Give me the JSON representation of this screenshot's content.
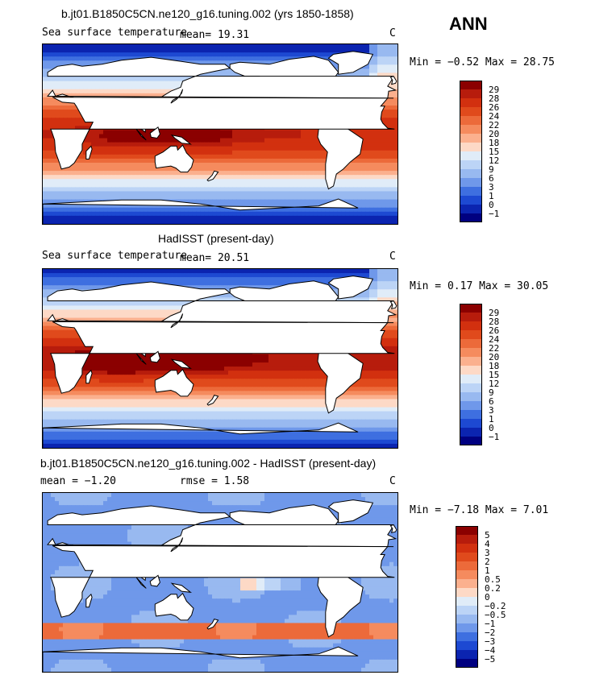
{
  "season": "ANN",
  "panels": [
    {
      "title": "b.jt01.B1850C5CN.ne120_g16.tuning.002 (yrs 1850-1858)",
      "left_label": "Sea surface temperature",
      "mean_text": "mean=  19.31",
      "units": "C",
      "minmax": "Min =  −0.52  Max =  28.75",
      "kind": "abs"
    },
    {
      "title": "HadISST (present-day)",
      "left_label": "Sea surface temperature",
      "mean_text": "mean=  20.51",
      "units": "C",
      "minmax": "Min =   0.17  Max =  30.05",
      "kind": "abs"
    },
    {
      "title": "b.jt01.B1850C5CN.ne120_g16.tuning.002 - HadISST (present-day)",
      "left_label": "mean =  −1.20",
      "mean_text": "rmse =   1.58",
      "units": "C",
      "minmax": "Min =  −7.18  Max =   7.01",
      "kind": "diff"
    }
  ],
  "colorbar_abs": {
    "labels": [
      "29",
      "28",
      "26",
      "24",
      "22",
      "20",
      "18",
      "15",
      "12",
      "9",
      "6",
      "3",
      "1",
      "0",
      "−1"
    ],
    "colors": [
      "#8b0000",
      "#b71c0c",
      "#d2300f",
      "#e04a1c",
      "#ec6a3a",
      "#f58b5e",
      "#fbb08e",
      "#fdd9c6",
      "#e0ecf8",
      "#bcd4f6",
      "#98b9f0",
      "#6f98ea",
      "#3e6fe0",
      "#1d49d2",
      "#0b24b0",
      "#000080"
    ]
  },
  "colorbar_diff": {
    "labels": [
      "5",
      "4",
      "3",
      "2",
      "1",
      "0.5",
      "0.2",
      "0",
      "−0.2",
      "−0.5",
      "−1",
      "−2",
      "−3",
      "−4",
      "−5"
    ],
    "colors": [
      "#8b0000",
      "#b71c0c",
      "#d2300f",
      "#e04a1c",
      "#ec6a3a",
      "#f58b5e",
      "#fbb08e",
      "#fdd9c6",
      "#e0ecf8",
      "#bcd4f6",
      "#98b9f0",
      "#6f98ea",
      "#3e6fe0",
      "#1d49d2",
      "#0b24b0",
      "#000080"
    ]
  }
}
